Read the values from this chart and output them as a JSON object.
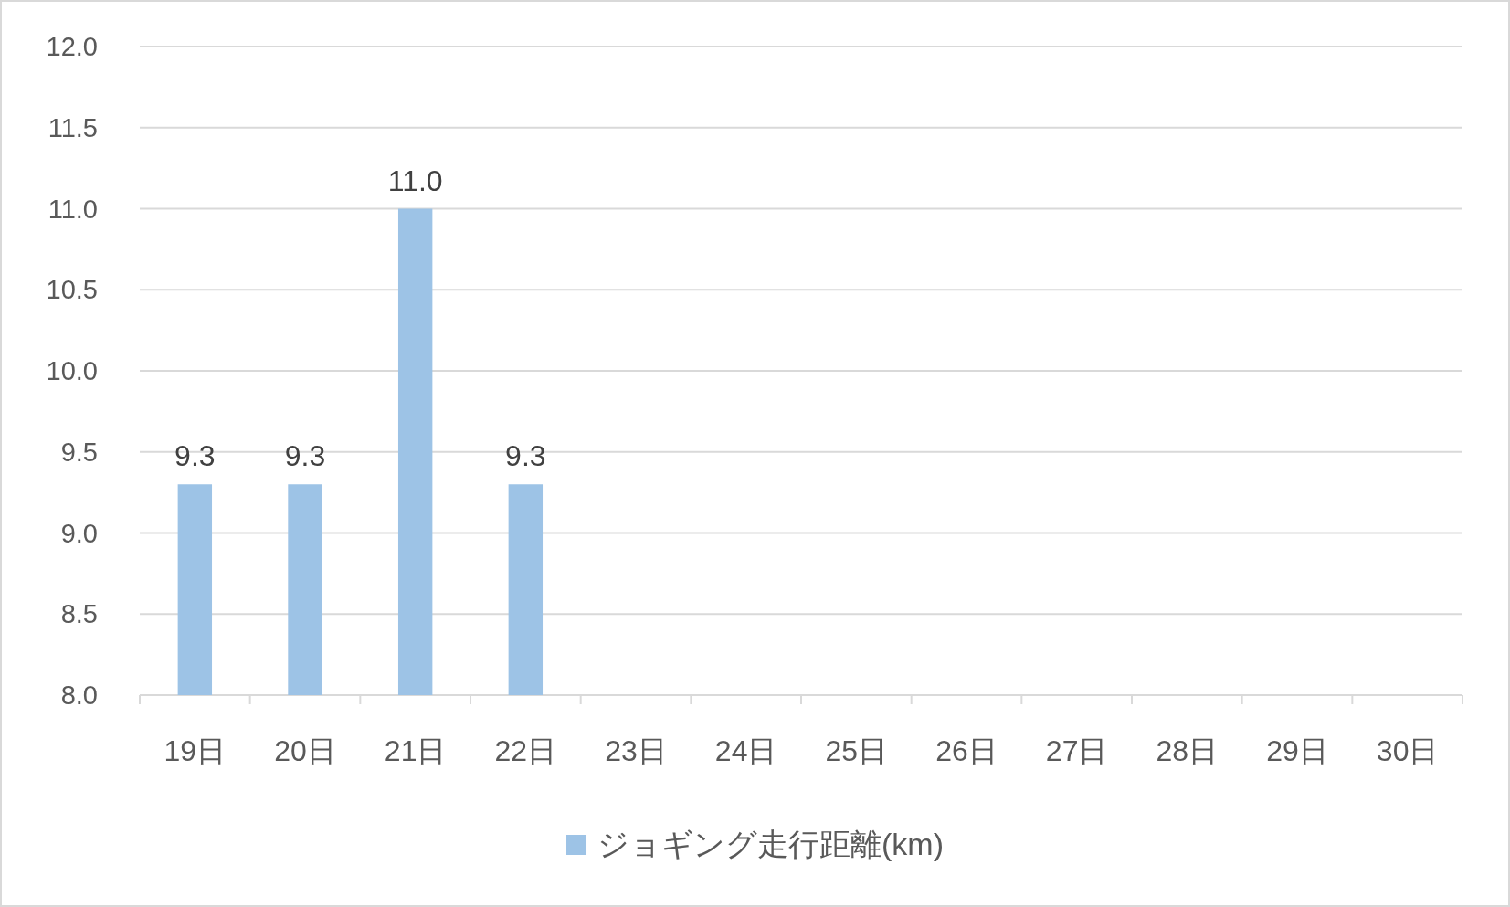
{
  "chart_data": {
    "type": "bar",
    "categories": [
      "19日",
      "20日",
      "21日",
      "22日",
      "23日",
      "24日",
      "25日",
      "26日",
      "27日",
      "28日",
      "29日",
      "30日"
    ],
    "series": [
      {
        "name": "ジョギング走行距離(km)",
        "color": "#9dc3e6",
        "values": [
          9.3,
          9.3,
          11.0,
          9.3,
          null,
          null,
          null,
          null,
          null,
          null,
          null,
          null
        ],
        "value_labels": [
          "9.3",
          "9.3",
          "11.0",
          "9.3",
          null,
          null,
          null,
          null,
          null,
          null,
          null,
          null
        ]
      }
    ],
    "ylim": [
      8.0,
      12.0
    ],
    "yticks": [
      {
        "value": 8,
        "label": "8.0"
      },
      {
        "value": 8.5,
        "label": "8.5"
      },
      {
        "value": 9,
        "label": "9.0"
      },
      {
        "value": 9.5,
        "label": "9.5"
      },
      {
        "value": 10,
        "label": "10.0"
      },
      {
        "value": 10.5,
        "label": "10.5"
      },
      {
        "value": 11,
        "label": "11.0"
      },
      {
        "value": 11.5,
        "label": "11.5"
      },
      {
        "value": 12,
        "label": "12.0"
      }
    ],
    "grid": "y",
    "legend": "bottom"
  }
}
